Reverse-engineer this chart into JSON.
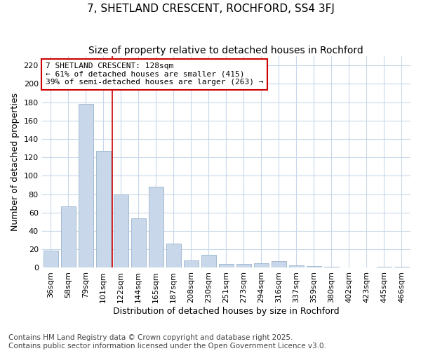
{
  "title": "7, SHETLAND CRESCENT, ROCHFORD, SS4 3FJ",
  "subtitle": "Size of property relative to detached houses in Rochford",
  "xlabel": "Distribution of detached houses by size in Rochford",
  "ylabel": "Number of detached properties",
  "categories": [
    "36sqm",
    "58sqm",
    "79sqm",
    "101sqm",
    "122sqm",
    "144sqm",
    "165sqm",
    "187sqm",
    "208sqm",
    "230sqm",
    "251sqm",
    "273sqm",
    "294sqm",
    "316sqm",
    "337sqm",
    "359sqm",
    "380sqm",
    "402sqm",
    "423sqm",
    "445sqm",
    "466sqm"
  ],
  "values": [
    19,
    67,
    178,
    127,
    80,
    54,
    88,
    26,
    8,
    14,
    4,
    4,
    5,
    7,
    3,
    2,
    1,
    0,
    0,
    1,
    1
  ],
  "bar_color": "#c8d8ea",
  "bar_edge_color": "#9ab4cc",
  "background_color": "#ffffff",
  "plot_background": "#ffffff",
  "grid_color": "#c8d8ea",
  "annotation_box_text": "7 SHETLAND CRESCENT: 128sqm\n← 61% of detached houses are smaller (415)\n39% of semi-detached houses are larger (263) →",
  "annotation_box_color": "#ffffff",
  "annotation_box_edge_color": "#cc0000",
  "red_line_x": 3.5,
  "ylim": [
    0,
    230
  ],
  "yticks": [
    0,
    20,
    40,
    60,
    80,
    100,
    120,
    140,
    160,
    180,
    200,
    220
  ],
  "footer_text": "Contains HM Land Registry data © Crown copyright and database right 2025.\nContains public sector information licensed under the Open Government Licence v3.0.",
  "title_fontsize": 11,
  "subtitle_fontsize": 10,
  "axis_label_fontsize": 9,
  "tick_fontsize": 8,
  "annotation_fontsize": 8,
  "footer_fontsize": 7.5
}
